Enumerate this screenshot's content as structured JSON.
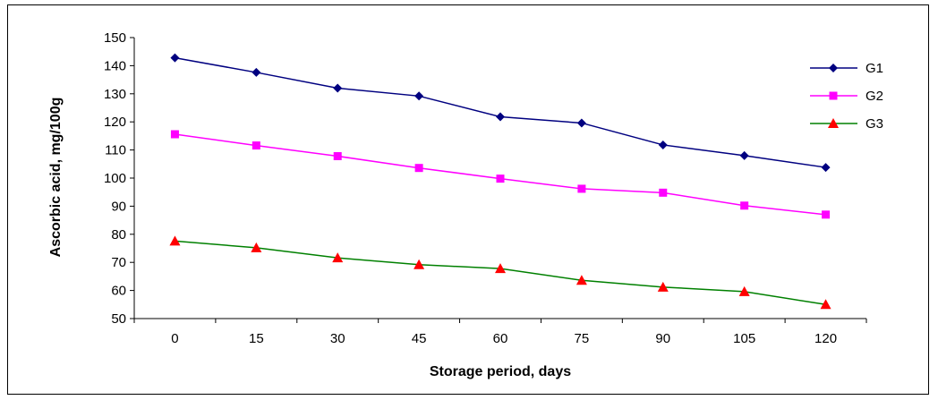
{
  "chart_data": {
    "type": "line",
    "title": "",
    "xlabel": "Storage period, days",
    "ylabel": "Ascorbic acid, mg/100g",
    "categories": [
      "0",
      "15",
      "30",
      "45",
      "60",
      "75",
      "90",
      "105",
      "120"
    ],
    "ylim": [
      50,
      150
    ],
    "yticks": [
      "50",
      "60",
      "70",
      "80",
      "90",
      "100",
      "110",
      "120",
      "130",
      "140",
      "150"
    ],
    "grid": false,
    "legend_position": "top-right",
    "series": [
      {
        "name": "G1",
        "color": "#000080",
        "marker": "diamond",
        "values": [
          142.8,
          137.6,
          132,
          129.2,
          121.8,
          119.6,
          111.8,
          108,
          103.8
        ]
      },
      {
        "name": "G2",
        "color": "#ff00ff",
        "marker": "square",
        "values": [
          115.6,
          111.6,
          107.8,
          103.6,
          99.8,
          96.2,
          94.8,
          90.2,
          87.0
        ]
      },
      {
        "name": "G3",
        "color": "#008000",
        "marker_color": "#ff0000",
        "marker": "triangle",
        "values": [
          77.6,
          75.2,
          71.6,
          69.2,
          67.8,
          63.6,
          61.2,
          59.6,
          55.0
        ]
      }
    ]
  }
}
